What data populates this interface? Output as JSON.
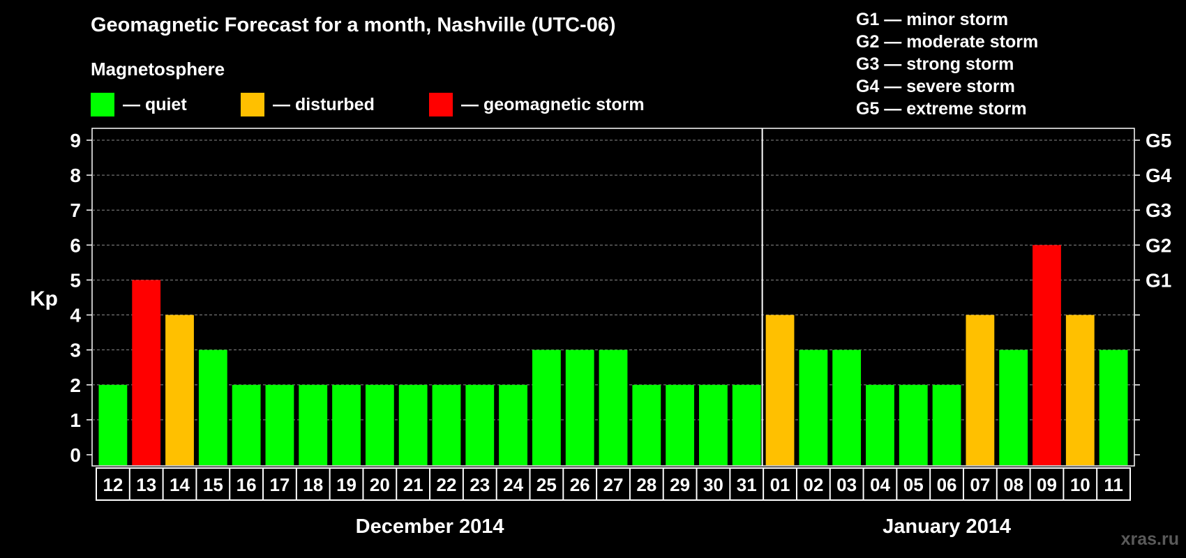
{
  "header": {
    "title": "Geomagnetic Forecast for a month, Nashville (UTC-06)",
    "section": "Magnetosphere"
  },
  "legend": [
    {
      "label": "— quiet",
      "color": "#00ff00"
    },
    {
      "label": "— disturbed",
      "color": "#ffc000"
    },
    {
      "label": "— geomagnetic storm",
      "color": "#ff0000"
    }
  ],
  "storm_scale": [
    "G1 — minor storm",
    "G2 — moderate storm",
    "G3 — strong storm",
    "G4 — severe storm",
    "G5 — extreme storm"
  ],
  "watermark": "xras.ru",
  "chart_data": {
    "type": "bar",
    "ylabel": "Kp",
    "ylim": [
      0,
      9
    ],
    "yticks": [
      "0",
      "1",
      "2",
      "3",
      "4",
      "5",
      "6",
      "7",
      "8",
      "9"
    ],
    "right_axis_labels": [
      {
        "value": 5,
        "label": "G1"
      },
      {
        "value": 6,
        "label": "G2"
      },
      {
        "value": 7,
        "label": "G3"
      },
      {
        "value": 8,
        "label": "G4"
      },
      {
        "value": 9,
        "label": "G5"
      }
    ],
    "categories": [
      "12",
      "13",
      "14",
      "15",
      "16",
      "17",
      "18",
      "19",
      "20",
      "21",
      "22",
      "23",
      "24",
      "25",
      "26",
      "27",
      "28",
      "29",
      "30",
      "31",
      "01",
      "02",
      "03",
      "04",
      "05",
      "06",
      "07",
      "08",
      "09",
      "10",
      "11"
    ],
    "values": [
      2,
      5,
      4,
      3,
      2,
      2,
      2,
      2,
      2,
      2,
      2,
      2,
      2,
      3,
      3,
      3,
      2,
      2,
      2,
      2,
      4,
      3,
      3,
      2,
      2,
      2,
      4,
      3,
      6,
      4,
      3
    ],
    "levels": [
      "quiet",
      "storm",
      "disturbed",
      "quiet",
      "quiet",
      "quiet",
      "quiet",
      "quiet",
      "quiet",
      "quiet",
      "quiet",
      "quiet",
      "quiet",
      "quiet",
      "quiet",
      "quiet",
      "quiet",
      "quiet",
      "quiet",
      "quiet",
      "disturbed",
      "quiet",
      "quiet",
      "quiet",
      "quiet",
      "quiet",
      "disturbed",
      "quiet",
      "storm",
      "disturbed",
      "quiet"
    ],
    "level_colors": {
      "quiet": "#00ff00",
      "disturbed": "#ffc000",
      "storm": "#ff0000"
    },
    "months": [
      {
        "label": "December 2014",
        "start": 0,
        "count": 20
      },
      {
        "label": "January 2014",
        "start": 20,
        "count": 11
      }
    ],
    "grid": true
  }
}
